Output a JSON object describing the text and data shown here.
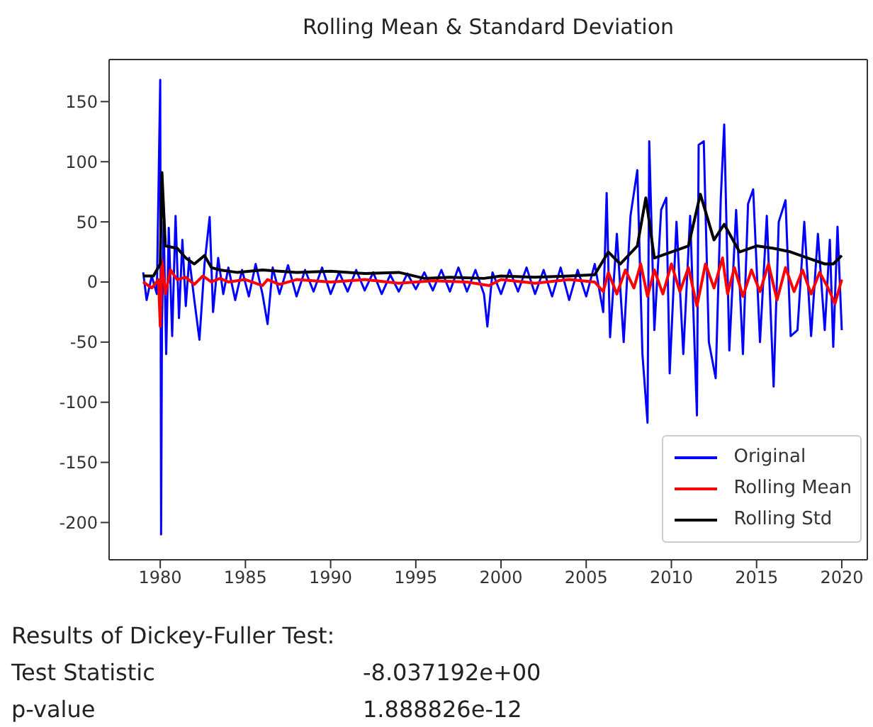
{
  "chart_data": {
    "type": "line",
    "title": "Rolling Mean & Standard Deviation",
    "xlim": [
      1977,
      2021.5
    ],
    "xticks": [
      1980,
      1985,
      1990,
      1995,
      2000,
      2005,
      2010,
      2015,
      2020
    ],
    "ylim": [
      -231,
      185
    ],
    "yticks": [
      -200,
      -150,
      -100,
      -50,
      0,
      50,
      100,
      150
    ],
    "legend": "bottom right",
    "grid": false,
    "series": [
      {
        "name": "Original",
        "color": "#0000ff",
        "x": [
          1979.0,
          1979.2,
          1979.5,
          1979.8,
          1980.0,
          1980.05,
          1980.1,
          1980.2,
          1980.35,
          1980.5,
          1980.7,
          1980.9,
          1981.1,
          1981.3,
          1981.5,
          1981.7,
          1982.0,
          1982.3,
          1982.6,
          1982.9,
          1983.1,
          1983.4,
          1983.7,
          1984.0,
          1984.4,
          1984.8,
          1985.2,
          1985.6,
          1986.0,
          1986.3,
          1986.6,
          1987.0,
          1987.5,
          1988.0,
          1988.5,
          1989.0,
          1989.5,
          1990.0,
          1990.5,
          1991.0,
          1991.5,
          1992.0,
          1992.5,
          1993.0,
          1993.5,
          1994.0,
          1994.5,
          1995.0,
          1995.5,
          1996.0,
          1996.5,
          1997.0,
          1997.5,
          1998.0,
          1998.5,
          1999.0,
          1999.2,
          1999.5,
          2000.0,
          2000.5,
          2001.0,
          2001.5,
          2002.0,
          2002.5,
          2003.0,
          2003.5,
          2004.0,
          2004.5,
          2005.0,
          2005.5,
          2006.0,
          2006.2,
          2006.4,
          2006.8,
          2007.2,
          2007.6,
          2008.0,
          2008.3,
          2008.6,
          2008.7,
          2009.0,
          2009.4,
          2009.7,
          2009.9,
          2010.3,
          2010.7,
          2011.1,
          2011.5,
          2011.6,
          2011.9,
          2012.2,
          2012.6,
          2012.9,
          2013.1,
          2013.4,
          2013.8,
          2014.2,
          2014.5,
          2014.8,
          2015.2,
          2015.6,
          2016.0,
          2016.3,
          2016.7,
          2017.0,
          2017.4,
          2017.8,
          2018.2,
          2018.6,
          2019.0,
          2019.3,
          2019.5,
          2019.75,
          2020.0
        ],
        "values": [
          8,
          -15,
          5,
          -10,
          168,
          -210,
          -40,
          50,
          -60,
          45,
          -45,
          55,
          -30,
          35,
          -20,
          20,
          -15,
          -48,
          15,
          54,
          -25,
          20,
          -10,
          12,
          -15,
          10,
          -12,
          15,
          -10,
          -35,
          12,
          -10,
          14,
          -12,
          10,
          -8,
          12,
          -10,
          8,
          -8,
          10,
          -7,
          8,
          -10,
          6,
          -8,
          7,
          -6,
          8,
          -7,
          10,
          -8,
          12,
          -8,
          10,
          -10,
          -37,
          8,
          -10,
          10,
          -8,
          12,
          -10,
          10,
          -12,
          12,
          -15,
          10,
          -12,
          15,
          -25,
          74,
          -46,
          40,
          -50,
          55,
          93,
          -60,
          -117,
          117,
          -40,
          60,
          70,
          -76,
          50,
          -60,
          55,
          -111,
          114,
          117,
          -50,
          -80,
          70,
          131,
          -57,
          60,
          -60,
          65,
          77,
          -50,
          55,
          -87,
          50,
          68,
          -45,
          -40,
          50,
          -45,
          40,
          -40,
          35,
          -54,
          46,
          -40
        ]
      },
      {
        "name": "Rolling Mean",
        "color": "#ff0000",
        "x": [
          1979.0,
          1979.5,
          1979.9,
          1980.0,
          1980.1,
          1980.3,
          1980.6,
          1981.0,
          1981.5,
          1982.0,
          1982.5,
          1983.0,
          1983.5,
          1984.0,
          1985.0,
          1986.0,
          1986.3,
          1987.0,
          1988.0,
          1990.0,
          1992.0,
          1994.0,
          1996.0,
          1998.0,
          1999.3,
          2000.0,
          2002.0,
          2004.0,
          2005.5,
          2006.0,
          2006.3,
          2006.8,
          2007.3,
          2007.8,
          2008.2,
          2008.6,
          2009.0,
          2009.5,
          2010.0,
          2010.5,
          2011.0,
          2011.5,
          2012.0,
          2012.5,
          2013.0,
          2013.3,
          2013.7,
          2014.2,
          2014.7,
          2015.2,
          2015.7,
          2016.2,
          2016.7,
          2017.2,
          2017.7,
          2018.2,
          2018.7,
          2019.2,
          2019.6,
          2020.0
        ],
        "values": [
          0,
          -5,
          2,
          -37,
          18,
          -10,
          10,
          2,
          4,
          -2,
          5,
          0,
          3,
          0,
          2,
          -3,
          2,
          -2,
          2,
          0,
          2,
          -1,
          1,
          0,
          -3,
          2,
          -1,
          2,
          0,
          -8,
          8,
          -10,
          10,
          -5,
          15,
          -12,
          10,
          -10,
          15,
          -8,
          12,
          -20,
          15,
          -5,
          20,
          -10,
          12,
          -12,
          10,
          -8,
          15,
          -15,
          12,
          -8,
          10,
          -10,
          8,
          -5,
          -18,
          2
        ]
      },
      {
        "name": "Rolling Std",
        "color": "#000000",
        "x": [
          1979.0,
          1979.6,
          1980.0,
          1980.1,
          1980.3,
          1981.0,
          1981.5,
          1982.0,
          1982.6,
          1983.0,
          1983.5,
          1984.5,
          1986.0,
          1988.0,
          1990.0,
          1992.0,
          1994.0,
          1995.5,
          1997.0,
          1999.0,
          2000.0,
          2002.0,
          2004.0,
          2005.5,
          2006.3,
          2007.0,
          2008.0,
          2008.5,
          2009.0,
          2010.0,
          2011.0,
          2011.7,
          2012.5,
          2013.1,
          2014.0,
          2015.0,
          2016.0,
          2017.0,
          2018.0,
          2019.0,
          2019.5,
          2020.0
        ],
        "values": [
          5,
          5,
          15,
          91,
          30,
          28,
          20,
          15,
          22,
          12,
          10,
          8,
          10,
          8,
          9,
          7,
          8,
          3,
          4,
          3,
          5,
          4,
          5,
          6,
          25,
          15,
          30,
          70,
          20,
          25,
          30,
          73,
          35,
          48,
          25,
          30,
          28,
          25,
          20,
          15,
          15,
          22
        ]
      }
    ],
    "annotations": [
      "Results of Dickey-Fuller Test:",
      "Test Statistic",
      "-8.037192e+00",
      "p-value",
      "1.888826e-12"
    ]
  }
}
